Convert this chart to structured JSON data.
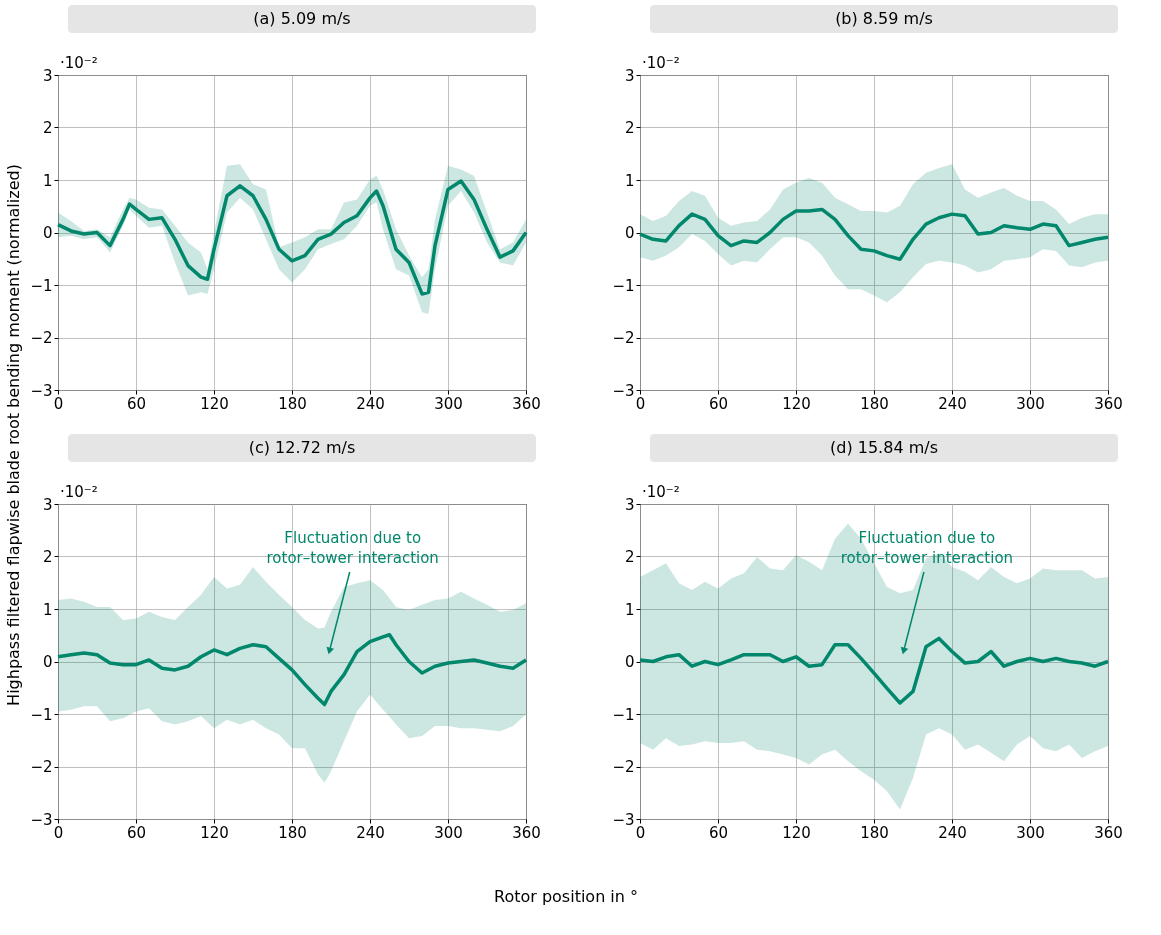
{
  "chart_data": [
    {
      "type": "line",
      "title": "(a) 5.09  m/s",
      "ylabel": "Highpass filtered flapwise blade root bending moment (normalized)",
      "xlabel": "Rotor position in °",
      "annotations": [
        "·10⁻²"
      ],
      "x": [
        0,
        10,
        20,
        30,
        40,
        50,
        55,
        60,
        70,
        80,
        90,
        100,
        110,
        115,
        120,
        130,
        140,
        150,
        160,
        170,
        180,
        190,
        200,
        210,
        220,
        230,
        240,
        245,
        250,
        260,
        270,
        280,
        285,
        290,
        300,
        310,
        320,
        330,
        340,
        350,
        360
      ],
      "series": [
        {
          "color": "#00876c",
          "values": [
            0.15,
            0.03,
            -0.03,
            0.0,
            -0.25,
            0.25,
            0.54,
            0.44,
            0.25,
            0.28,
            -0.13,
            -0.63,
            -0.85,
            -0.89,
            -0.32,
            0.7,
            0.89,
            0.7,
            0.25,
            -0.32,
            -0.54,
            -0.44,
            -0.13,
            -0.03,
            0.19,
            0.32,
            0.66,
            0.79,
            0.51,
            -0.32,
            -0.57,
            -1.17,
            -1.14,
            -0.25,
            0.82,
            0.98,
            0.63,
            0.06,
            -0.47,
            -0.35,
            0.0
          ],
          "upper": [
            0.38,
            0.22,
            0.03,
            0.06,
            -0.09,
            0.44,
            0.66,
            0.63,
            0.47,
            0.44,
            0.13,
            -0.19,
            -0.38,
            -0.7,
            0.0,
            1.27,
            1.3,
            0.92,
            0.82,
            -0.28,
            -0.19,
            -0.09,
            0.06,
            0.06,
            0.57,
            0.63,
            1.01,
            1.08,
            0.82,
            0.06,
            -0.44,
            -0.85,
            -0.7,
            0.25,
            1.27,
            1.2,
            1.08,
            0.38,
            -0.32,
            -0.19,
            0.25
          ],
          "lower": [
            -0.09,
            -0.06,
            -0.13,
            -0.09,
            -0.38,
            0.13,
            0.44,
            0.32,
            0.09,
            0.13,
            -0.57,
            -1.2,
            -1.14,
            -1.17,
            -0.7,
            0.38,
            0.66,
            0.44,
            -0.13,
            -0.7,
            -0.95,
            -0.7,
            -0.32,
            -0.22,
            -0.13,
            0.13,
            0.51,
            0.57,
            0.06,
            -0.7,
            -0.82,
            -1.52,
            -1.55,
            -0.7,
            0.51,
            0.79,
            0.38,
            -0.19,
            -0.57,
            -0.63,
            -0.19
          ]
        }
      ],
      "xlim": [
        0,
        360
      ],
      "ylim": [
        -3,
        3
      ],
      "xticks": [
        0,
        60,
        120,
        180,
        240,
        300,
        360
      ],
      "yticks": [
        -3,
        -2,
        -1,
        0,
        1,
        2,
        3
      ],
      "grid": true
    },
    {
      "type": "line",
      "title": "(b) 8.59  m/s",
      "annotations": [
        "·10⁻²"
      ],
      "x": [
        0,
        10,
        20,
        30,
        40,
        50,
        60,
        70,
        80,
        90,
        100,
        110,
        120,
        130,
        140,
        150,
        160,
        170,
        180,
        190,
        200,
        210,
        220,
        230,
        240,
        250,
        260,
        270,
        280,
        290,
        300,
        310,
        320,
        330,
        340,
        350,
        360
      ],
      "series": [
        {
          "color": "#00876c",
          "values": [
            -0.03,
            -0.13,
            -0.16,
            0.13,
            0.35,
            0.25,
            -0.06,
            -0.25,
            -0.16,
            -0.19,
            0.0,
            0.25,
            0.41,
            0.41,
            0.44,
            0.25,
            -0.06,
            -0.32,
            -0.35,
            -0.44,
            -0.51,
            -0.13,
            0.16,
            0.28,
            0.35,
            0.32,
            -0.03,
            0.0,
            0.13,
            0.09,
            0.06,
            0.16,
            0.13,
            -0.25,
            -0.19,
            -0.13,
            -0.09
          ],
          "upper": [
            0.35,
            0.22,
            0.32,
            0.6,
            0.79,
            0.7,
            0.28,
            0.13,
            0.19,
            0.22,
            0.44,
            0.82,
            0.95,
            1.04,
            0.95,
            0.66,
            0.54,
            0.41,
            0.41,
            0.38,
            0.51,
            0.92,
            1.14,
            1.23,
            1.3,
            0.82,
            0.66,
            0.76,
            0.85,
            0.7,
            0.6,
            0.6,
            0.44,
            0.16,
            0.28,
            0.35,
            0.35
          ],
          "lower": [
            -0.47,
            -0.54,
            -0.44,
            -0.28,
            -0.03,
            -0.16,
            -0.41,
            -0.63,
            -0.54,
            -0.57,
            -0.32,
            -0.09,
            -0.09,
            -0.19,
            -0.44,
            -0.82,
            -1.08,
            -1.08,
            -1.2,
            -1.33,
            -1.14,
            -0.85,
            -0.6,
            -0.54,
            -0.57,
            -0.63,
            -0.76,
            -0.7,
            -0.54,
            -0.51,
            -0.47,
            -0.32,
            -0.35,
            -0.63,
            -0.66,
            -0.57,
            -0.54
          ]
        }
      ],
      "xlim": [
        0,
        360
      ],
      "ylim": [
        -3,
        3
      ],
      "xticks": [
        0,
        60,
        120,
        180,
        240,
        300,
        360
      ],
      "yticks": [
        -3,
        -2,
        -1,
        0,
        1,
        2,
        3
      ],
      "grid": true
    },
    {
      "type": "line",
      "title": "(c) 12.72  m/s",
      "annotations": [
        "·10⁻²",
        {
          "text": "Fluctuation due to\nrotor–tower interaction",
          "x": 209,
          "y": 0.22
        }
      ],
      "x": [
        0,
        10,
        20,
        30,
        40,
        50,
        60,
        70,
        80,
        90,
        100,
        110,
        120,
        130,
        140,
        150,
        160,
        170,
        180,
        190,
        200,
        205,
        210,
        220,
        230,
        240,
        250,
        255,
        260,
        270,
        280,
        290,
        300,
        310,
        320,
        330,
        340,
        350,
        360
      ],
      "series": [
        {
          "color": "#00876c",
          "values": [
            0.09,
            0.13,
            0.16,
            0.13,
            -0.03,
            -0.06,
            -0.06,
            0.03,
            -0.13,
            -0.16,
            -0.09,
            0.09,
            0.22,
            0.13,
            0.25,
            0.32,
            0.28,
            0.06,
            -0.16,
            -0.44,
            -0.7,
            -0.82,
            -0.57,
            -0.25,
            0.19,
            0.38,
            0.47,
            0.51,
            0.32,
            0.0,
            -0.22,
            -0.09,
            -0.03,
            0.0,
            0.03,
            -0.03,
            -0.09,
            -0.13,
            0.03
          ],
          "upper": [
            1.17,
            1.2,
            1.14,
            1.04,
            1.04,
            0.79,
            0.82,
            0.95,
            0.85,
            0.79,
            1.04,
            1.27,
            1.61,
            1.39,
            1.46,
            1.8,
            1.52,
            1.27,
            1.04,
            0.79,
            0.63,
            0.65,
            0.95,
            1.42,
            1.49,
            1.55,
            1.36,
            1.2,
            1.04,
            0.98,
            1.08,
            1.17,
            1.2,
            1.33,
            1.2,
            1.08,
            0.95,
            0.98,
            1.11
          ],
          "lower": [
            -0.95,
            -0.92,
            -0.85,
            -0.85,
            -1.14,
            -1.08,
            -0.95,
            -0.89,
            -1.14,
            -1.2,
            -1.14,
            -1.04,
            -1.27,
            -1.11,
            -1.2,
            -1.11,
            -1.27,
            -1.39,
            -1.65,
            -1.65,
            -2.15,
            -2.31,
            -2.09,
            -1.52,
            -0.95,
            -0.63,
            -0.92,
            -1.05,
            -1.2,
            -1.46,
            -1.42,
            -1.23,
            -1.23,
            -1.27,
            -1.27,
            -1.3,
            -1.33,
            -1.23,
            -1.01
          ]
        }
      ],
      "xlim": [
        0,
        360
      ],
      "ylim": [
        -3,
        3
      ],
      "xticks": [
        0,
        60,
        120,
        180,
        240,
        300,
        360
      ],
      "yticks": [
        -3,
        -2,
        -1,
        0,
        1,
        2,
        3
      ],
      "grid": true
    },
    {
      "type": "line",
      "title": "(d) 15.84  m/s",
      "annotations": [
        "·10⁻²",
        {
          "text": "Fluctuation due to\nrotor–tower interaction",
          "x": 203,
          "y": 0.22
        }
      ],
      "x": [
        0,
        10,
        20,
        30,
        40,
        50,
        60,
        70,
        80,
        90,
        100,
        110,
        120,
        130,
        140,
        150,
        160,
        170,
        180,
        190,
        200,
        210,
        220,
        230,
        240,
        250,
        260,
        270,
        280,
        290,
        300,
        310,
        320,
        330,
        340,
        350,
        360
      ],
      "series": [
        {
          "color": "#00876c",
          "values": [
            0.03,
            0.0,
            0.09,
            0.13,
            -0.09,
            0.0,
            -0.06,
            0.03,
            0.13,
            0.13,
            0.13,
            0.0,
            0.09,
            -0.09,
            -0.06,
            0.32,
            0.32,
            0.06,
            -0.22,
            -0.51,
            -0.79,
            -0.57,
            0.28,
            0.44,
            0.19,
            -0.03,
            0.0,
            0.19,
            -0.09,
            0.0,
            0.06,
            0.0,
            0.06,
            0.0,
            -0.03,
            -0.09,
            0.0
          ],
          "upper": [
            1.61,
            1.74,
            1.87,
            1.49,
            1.36,
            1.52,
            1.39,
            1.58,
            1.68,
            1.99,
            1.77,
            1.74,
            2.03,
            1.9,
            1.74,
            2.34,
            2.63,
            2.34,
            1.87,
            1.42,
            1.3,
            1.36,
            1.96,
            2.06,
            1.8,
            1.71,
            1.55,
            1.8,
            1.61,
            1.49,
            1.58,
            1.77,
            1.74,
            1.74,
            1.74,
            1.58,
            1.61
          ],
          "lower": [
            -1.55,
            -1.68,
            -1.46,
            -1.61,
            -1.58,
            -1.52,
            -1.55,
            -1.55,
            -1.52,
            -1.68,
            -1.71,
            -1.77,
            -1.84,
            -1.96,
            -1.77,
            -1.68,
            -1.9,
            -2.09,
            -2.25,
            -2.47,
            -2.82,
            -2.22,
            -1.39,
            -1.27,
            -1.39,
            -1.68,
            -1.58,
            -1.74,
            -1.9,
            -1.58,
            -1.42,
            -1.65,
            -1.71,
            -1.58,
            -1.84,
            -1.71,
            -1.61
          ]
        }
      ],
      "xlim": [
        0,
        360
      ],
      "ylim": [
        -3,
        3
      ],
      "xticks": [
        0,
        60,
        120,
        180,
        240,
        300,
        360
      ],
      "yticks": [
        -3,
        -2,
        -1,
        0,
        1,
        2,
        3
      ],
      "grid": true
    }
  ]
}
